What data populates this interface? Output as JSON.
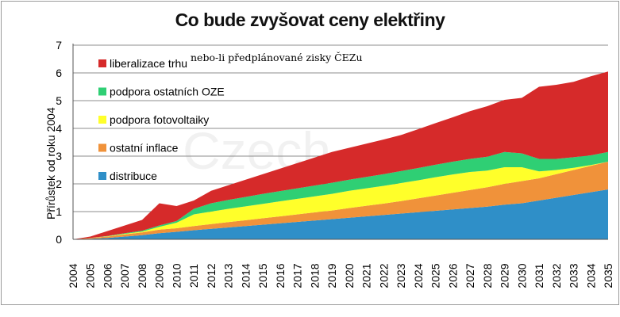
{
  "colors": {
    "distribuce": "#2f8fc8",
    "ostatni_inflace": "#f0923a",
    "podpora_fotovoltaiky": "#ffff2a",
    "podpora_ostatnich_oze": "#2fcf74",
    "liberalizace_trhu": "#d62a2a"
  },
  "chart_data": {
    "type": "area",
    "title": "Co bude zvyšovat ceny elektřiny",
    "ylabel": "Přírůstek od roku 2004",
    "xlabel": "",
    "ylim": [
      0,
      7
    ],
    "yticks": [
      "0",
      "1",
      "2",
      "3",
      "4",
      "5",
      "6",
      "7"
    ],
    "grid": true,
    "legend_position": "top-left",
    "annotation": "nebo-li předplánované zisky ČEZu",
    "categories": [
      "2004",
      "2005",
      "2006",
      "2007",
      "2008",
      "2009",
      "2010",
      "2011",
      "2012",
      "2013",
      "2014",
      "2015",
      "2016",
      "2017",
      "2018",
      "2019",
      "2020",
      "2021",
      "2022",
      "2023",
      "2024",
      "2025",
      "2026",
      "2027",
      "2028",
      "2029",
      "2030",
      "2031",
      "2032",
      "2033",
      "2034",
      "2035"
    ],
    "stack_order": [
      "distribuce",
      "ostatní inflace",
      "podpora fotovoltaiky",
      "podpora ostatních OZE",
      "liberalizace trhu"
    ],
    "series": [
      {
        "name": "distribuce",
        "color_key": "distribuce",
        "values": [
          0,
          0.02,
          0.05,
          0.1,
          0.15,
          0.22,
          0.27,
          0.33,
          0.38,
          0.43,
          0.48,
          0.53,
          0.58,
          0.63,
          0.68,
          0.73,
          0.78,
          0.83,
          0.88,
          0.93,
          0.98,
          1.03,
          1.08,
          1.13,
          1.18,
          1.25,
          1.3,
          1.4,
          1.5,
          1.6,
          1.7,
          1.8
        ]
      },
      {
        "name": "ostatní inflace",
        "color_key": "ostatni_inflace",
        "values": [
          0,
          0.03,
          0.05,
          0.08,
          0.1,
          0.13,
          0.13,
          0.15,
          0.17,
          0.19,
          0.21,
          0.23,
          0.25,
          0.27,
          0.29,
          0.31,
          0.35,
          0.38,
          0.41,
          0.45,
          0.5,
          0.55,
          0.6,
          0.65,
          0.7,
          0.75,
          0.8,
          0.8,
          0.85,
          0.9,
          0.95,
          1.0
        ]
      },
      {
        "name": "podpora fotovoltaiky",
        "color_key": "podpora_fotovoltaiky",
        "values": [
          0,
          0,
          0.01,
          0.02,
          0.03,
          0.1,
          0.2,
          0.42,
          0.45,
          0.48,
          0.5,
          0.52,
          0.54,
          0.56,
          0.58,
          0.6,
          0.62,
          0.63,
          0.64,
          0.65,
          0.65,
          0.66,
          0.66,
          0.65,
          0.6,
          0.6,
          0.5,
          0.25,
          0.15,
          0.08,
          0.03,
          0
        ]
      },
      {
        "name": "podpora ostatních OZE",
        "color_key": "podpora_ostatnich_oze",
        "values": [
          0,
          0,
          0.01,
          0.02,
          0.03,
          0.05,
          0.06,
          0.2,
          0.3,
          0.32,
          0.34,
          0.36,
          0.37,
          0.38,
          0.39,
          0.4,
          0.4,
          0.41,
          0.42,
          0.43,
          0.44,
          0.45,
          0.46,
          0.47,
          0.5,
          0.55,
          0.5,
          0.45,
          0.4,
          0.38,
          0.35,
          0.35
        ]
      },
      {
        "name": "liberalizace trhu",
        "color_key": "liberalizace_trhu",
        "values": [
          0,
          0.05,
          0.18,
          0.28,
          0.39,
          0.8,
          0.54,
          0.3,
          0.45,
          0.53,
          0.62,
          0.71,
          0.81,
          0.91,
          1.01,
          1.11,
          1.15,
          1.2,
          1.25,
          1.3,
          1.4,
          1.5,
          1.6,
          1.72,
          1.82,
          1.88,
          2.0,
          2.6,
          2.67,
          2.72,
          2.85,
          2.9
        ]
      }
    ]
  },
  "watermark": "Czech"
}
